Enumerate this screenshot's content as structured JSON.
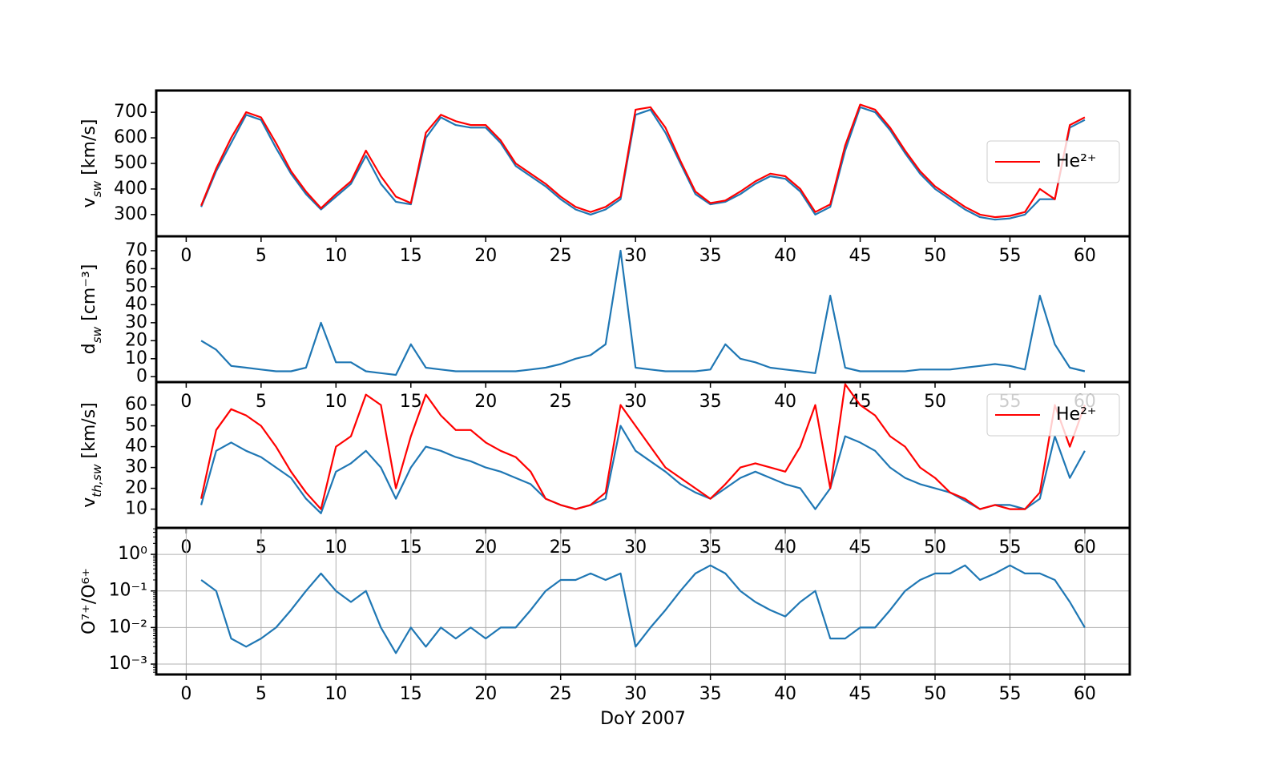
{
  "chart_data": [
    {
      "type": "line",
      "ylabel": "v_{sw} [km/s]",
      "xlim": [
        -2,
        63
      ],
      "ylim": [
        215,
        785
      ],
      "xticks": [
        0,
        5,
        10,
        15,
        20,
        25,
        30,
        35,
        40,
        45,
        50,
        55,
        60
      ],
      "yticks": [
        300,
        400,
        500,
        600,
        700
      ],
      "legend": "center right",
      "grid": false,
      "x": [
        1,
        2,
        3,
        4,
        5,
        6,
        7,
        8,
        9,
        10,
        11,
        12,
        13,
        14,
        15,
        16,
        17,
        18,
        19,
        20,
        21,
        22,
        23,
        24,
        25,
        26,
        27,
        28,
        29,
        30,
        31,
        32,
        33,
        34,
        35,
        36,
        37,
        38,
        39,
        40,
        41,
        42,
        43,
        44,
        45,
        46,
        47,
        48,
        49,
        50,
        51,
        52,
        53,
        54,
        55,
        56,
        57,
        58,
        59,
        60
      ],
      "series": [
        {
          "color": "#1f77b4",
          "values": [
            330,
            470,
            580,
            690,
            670,
            560,
            460,
            380,
            320,
            370,
            420,
            530,
            420,
            350,
            340,
            600,
            680,
            650,
            640,
            640,
            580,
            490,
            450,
            410,
            360,
            320,
            300,
            320,
            360,
            690,
            710,
            620,
            500,
            380,
            340,
            350,
            380,
            420,
            450,
            440,
            390,
            300,
            330,
            550,
            720,
            700,
            630,
            540,
            460,
            400,
            360,
            320,
            290,
            280,
            285,
            300,
            360,
            360,
            640,
            670
          ]
        },
        {
          "name": "He²⁺",
          "color": "#ff0000",
          "values": [
            335,
            480,
            600,
            700,
            680,
            580,
            470,
            390,
            325,
            380,
            430,
            550,
            450,
            370,
            345,
            620,
            690,
            665,
            650,
            650,
            590,
            500,
            460,
            420,
            370,
            330,
            310,
            330,
            370,
            710,
            720,
            640,
            510,
            390,
            345,
            355,
            390,
            430,
            460,
            450,
            400,
            310,
            340,
            570,
            730,
            710,
            640,
            550,
            470,
            410,
            370,
            330,
            300,
            290,
            295,
            310,
            400,
            360,
            650,
            680
          ]
        }
      ]
    },
    {
      "type": "line",
      "ylabel": "d_{sw} [cm⁻³]",
      "xlim": [
        -2,
        63
      ],
      "ylim": [
        -3,
        78
      ],
      "xticks": [
        0,
        5,
        10,
        15,
        20,
        25,
        30,
        35,
        40,
        45,
        50,
        55,
        60
      ],
      "yticks": [
        0,
        10,
        20,
        30,
        40,
        50,
        60,
        70
      ],
      "grid": false,
      "x": [
        1,
        2,
        3,
        4,
        5,
        6,
        7,
        8,
        9,
        10,
        11,
        12,
        13,
        14,
        15,
        16,
        17,
        18,
        19,
        20,
        21,
        22,
        23,
        24,
        25,
        26,
        27,
        28,
        29,
        30,
        31,
        32,
        33,
        34,
        35,
        36,
        37,
        38,
        39,
        40,
        41,
        42,
        43,
        44,
        45,
        46,
        47,
        48,
        49,
        50,
        51,
        52,
        53,
        54,
        55,
        56,
        57,
        58,
        59,
        60
      ],
      "series": [
        {
          "color": "#1f77b4",
          "values": [
            20,
            15,
            6,
            5,
            4,
            3,
            3,
            5,
            30,
            8,
            8,
            3,
            2,
            1,
            18,
            5,
            4,
            3,
            3,
            3,
            3,
            3,
            4,
            5,
            7,
            10,
            12,
            18,
            70,
            5,
            4,
            3,
            3,
            3,
            4,
            18,
            10,
            8,
            5,
            4,
            3,
            2,
            45,
            5,
            3,
            3,
            3,
            3,
            4,
            4,
            4,
            5,
            6,
            7,
            6,
            4,
            45,
            18,
            5,
            3
          ]
        }
      ]
    },
    {
      "type": "line",
      "ylabel": "v_{th,sw} [km/s]",
      "xlim": [
        -2,
        63
      ],
      "ylim": [
        1,
        71
      ],
      "xticks": [
        0,
        5,
        10,
        15,
        20,
        25,
        30,
        35,
        40,
        45,
        50,
        55,
        60
      ],
      "yticks": [
        10,
        20,
        30,
        40,
        50,
        60
      ],
      "legend": "upper right",
      "grid": false,
      "x": [
        1,
        2,
        3,
        4,
        5,
        6,
        7,
        8,
        9,
        10,
        11,
        12,
        13,
        14,
        15,
        16,
        17,
        18,
        19,
        20,
        21,
        22,
        23,
        24,
        25,
        26,
        27,
        28,
        29,
        30,
        31,
        32,
        33,
        34,
        35,
        36,
        37,
        38,
        39,
        40,
        41,
        42,
        43,
        44,
        45,
        46,
        47,
        48,
        49,
        50,
        51,
        52,
        53,
        54,
        55,
        56,
        57,
        58,
        59,
        60
      ],
      "series": [
        {
          "color": "#1f77b4",
          "values": [
            12,
            38,
            42,
            38,
            35,
            30,
            25,
            15,
            8,
            28,
            32,
            38,
            30,
            15,
            30,
            40,
            38,
            35,
            33,
            30,
            28,
            25,
            22,
            15,
            12,
            10,
            12,
            15,
            50,
            38,
            33,
            28,
            22,
            18,
            15,
            20,
            25,
            28,
            25,
            22,
            20,
            10,
            20,
            45,
            42,
            38,
            30,
            25,
            22,
            20,
            18,
            14,
            10,
            12,
            12,
            10,
            15,
            45,
            25,
            38
          ]
        },
        {
          "name": "He²⁺",
          "color": "#ff0000",
          "values": [
            15,
            48,
            58,
            55,
            50,
            40,
            28,
            18,
            10,
            40,
            45,
            65,
            60,
            20,
            45,
            65,
            55,
            48,
            48,
            42,
            38,
            35,
            28,
            15,
            12,
            10,
            12,
            18,
            60,
            50,
            40,
            30,
            25,
            20,
            15,
            22,
            30,
            32,
            30,
            28,
            40,
            60,
            20,
            70,
            60,
            55,
            45,
            40,
            30,
            25,
            18,
            15,
            10,
            12,
            10,
            10,
            18,
            60,
            40,
            60
          ]
        }
      ]
    },
    {
      "type": "line",
      "ylabel": "O⁷⁺/O⁶⁺",
      "xlabel": "DoY 2007",
      "xlim": [
        -2,
        63
      ],
      "ylim": [
        0.00052,
        5.3
      ],
      "yscale": "log",
      "xticks": [
        0,
        5,
        10,
        15,
        20,
        25,
        30,
        35,
        40,
        45,
        50,
        55,
        60
      ],
      "yticks": [
        {
          "value": 0.001,
          "label": "10⁻³"
        },
        {
          "value": 0.01,
          "label": "10⁻²"
        },
        {
          "value": 0.1,
          "label": "10⁻¹"
        },
        {
          "value": 1,
          "label": "10⁰"
        }
      ],
      "grid": true,
      "x": [
        1,
        2,
        3,
        4,
        5,
        6,
        7,
        8,
        9,
        10,
        11,
        12,
        13,
        14,
        15,
        16,
        17,
        18,
        19,
        20,
        21,
        22,
        23,
        24,
        25,
        26,
        27,
        28,
        29,
        30,
        31,
        32,
        33,
        34,
        35,
        36,
        37,
        38,
        39,
        40,
        41,
        42,
        43,
        44,
        45,
        46,
        47,
        48,
        49,
        50,
        51,
        52,
        53,
        54,
        55,
        56,
        57,
        58,
        59,
        60
      ],
      "series": [
        {
          "color": "#1f77b4",
          "values": [
            0.2,
            0.1,
            0.005,
            0.003,
            0.005,
            0.01,
            0.03,
            0.1,
            0.3,
            0.1,
            0.05,
            0.1,
            0.01,
            0.002,
            0.01,
            0.003,
            0.01,
            0.005,
            0.01,
            0.005,
            0.01,
            0.01,
            0.03,
            0.1,
            0.2,
            0.2,
            0.3,
            0.2,
            0.3,
            0.003,
            0.01,
            0.03,
            0.1,
            0.3,
            0.5,
            0.3,
            0.1,
            0.05,
            0.03,
            0.02,
            0.05,
            0.1,
            0.005,
            0.005,
            0.01,
            0.01,
            0.03,
            0.1,
            0.2,
            0.3,
            0.3,
            0.5,
            0.2,
            0.3,
            0.5,
            0.3,
            0.3,
            0.2,
            0.05,
            0.01
          ]
        }
      ]
    }
  ]
}
